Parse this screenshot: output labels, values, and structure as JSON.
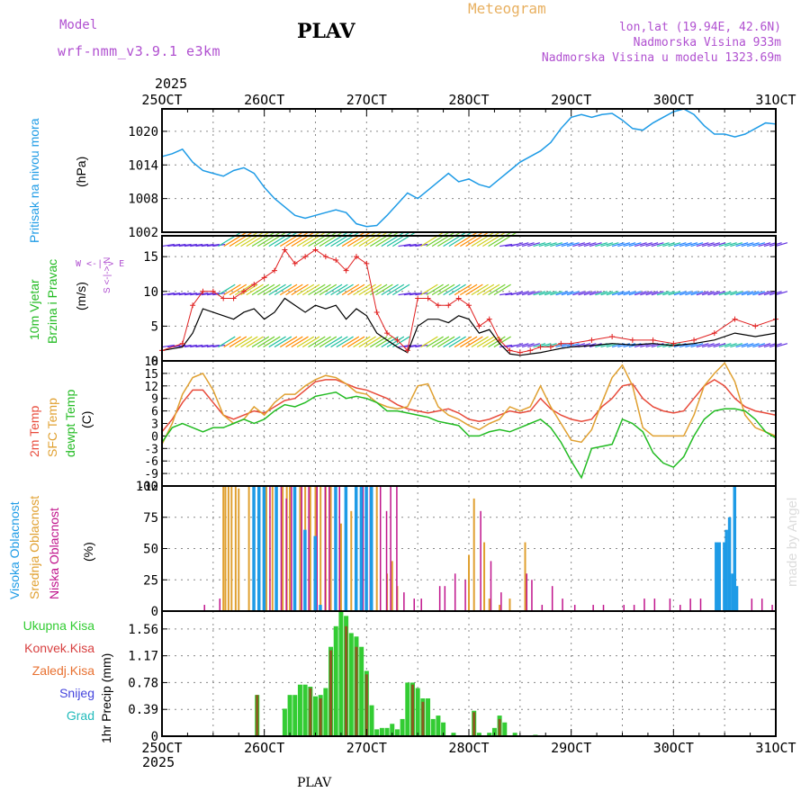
{
  "header": {
    "model_label": "Model",
    "model_name": "wrf-nmm_v3.9.1 e3km",
    "station": "PLAV",
    "meteogram_title": "Meteogram",
    "lonlat": "lon,lat (19.94E, 42.6N)",
    "altitude": "Nadmorska Visina 933m",
    "model_altitude": "Nadmorska Visina u modelu 1323.69m",
    "year": "2025",
    "footer_station": "PLAV",
    "watermark": "made by Angel"
  },
  "colors": {
    "pressure": "#1e9be6",
    "wind_speed": "#000000",
    "wind_gust": "#e02020",
    "temp2m": "#e84a3a",
    "sfc_temp": "#e0a030",
    "dewpoint": "#22bb22",
    "cloud_high": "#1e9be6",
    "cloud_mid": "#e0a030",
    "cloud_low": "#c0148c",
    "precip_total": "#33cc33",
    "precip_conv": "#d84040",
    "label_purple": "#b050d0",
    "title_orange": "#e8b060"
  },
  "time_axis": {
    "top_labels": [
      "25OCT",
      "26OCT",
      "27OCT",
      "28OCT",
      "29OCT",
      "30OCT",
      "31OCT"
    ],
    "bottom_labels": [
      "25OCT",
      "26OCT",
      "27OCT",
      "28OCT",
      "29OCT",
      "30OCT",
      "31OCT"
    ]
  },
  "chart_data": [
    {
      "type": "line",
      "panel": "pressure",
      "title": "Pritisak na nivou mora",
      "ylabel": "(hPa)",
      "yticks": [
        "1002",
        "1008",
        "1014",
        "1020"
      ],
      "ylim": [
        1002,
        1024
      ],
      "x_days": [
        0,
        0.1,
        0.2,
        0.3,
        0.4,
        0.5,
        0.6,
        0.7,
        0.8,
        0.9,
        1.0,
        1.1,
        1.2,
        1.3,
        1.4,
        1.5,
        1.6,
        1.7,
        1.8,
        1.9,
        2.0,
        2.1,
        2.2,
        2.3,
        2.4,
        2.5,
        2.6,
        2.7,
        2.8,
        2.9,
        3.0,
        3.1,
        3.2,
        3.3,
        3.4,
        3.5,
        3.6,
        3.7,
        3.8,
        3.9,
        4.0,
        4.1,
        4.2,
        4.3,
        4.4,
        4.5,
        4.6,
        4.7,
        4.8,
        4.9,
        5.0,
        5.1,
        5.2,
        5.3,
        5.4,
        5.5,
        5.6,
        5.7,
        5.8,
        5.9,
        6.0
      ],
      "values": [
        1015.5,
        1016,
        1016.8,
        1014.5,
        1013,
        1012.5,
        1012,
        1013,
        1013.5,
        1012.5,
        1010,
        1008,
        1006.5,
        1005,
        1004.5,
        1005,
        1005.5,
        1006,
        1005.5,
        1003.5,
        1003,
        1003.2,
        1005,
        1007,
        1009,
        1008,
        1009.5,
        1011,
        1012.5,
        1011,
        1011.5,
        1010.5,
        1010,
        1011.5,
        1013,
        1014.5,
        1015.5,
        1016.5,
        1018,
        1020.5,
        1022.5,
        1023,
        1022.5,
        1023,
        1023.2,
        1022,
        1020.5,
        1020.2,
        1021.5,
        1022.5,
        1023.5,
        1024,
        1023,
        1021,
        1019.5,
        1019.5,
        1019,
        1019.5,
        1020.5,
        1021.5,
        1021.3
      ]
    },
    {
      "type": "line",
      "panel": "wind",
      "title": "10m Vjetar Brzina i Pravac",
      "ylabel": "(m/s)",
      "compass": "W <-|-> E, S <-|-> N",
      "yticks": [
        "0",
        "5",
        "10",
        "15"
      ],
      "ylim": [
        0,
        18
      ],
      "x_days": [
        0,
        0.2,
        0.3,
        0.4,
        0.5,
        0.6,
        0.7,
        0.8,
        0.9,
        1.0,
        1.1,
        1.2,
        1.3,
        1.4,
        1.5,
        1.6,
        1.7,
        1.8,
        1.9,
        2.0,
        2.1,
        2.2,
        2.3,
        2.4,
        2.5,
        2.6,
        2.7,
        2.8,
        2.9,
        3.0,
        3.1,
        3.2,
        3.3,
        3.4,
        3.5,
        3.6,
        3.7,
        3.8,
        3.9,
        4.0,
        4.2,
        4.4,
        4.6,
        4.8,
        5.0,
        5.2,
        5.4,
        5.6,
        5.8,
        6.0
      ],
      "speed": [
        1.5,
        2,
        4,
        7.5,
        7,
        6.5,
        6,
        7,
        7.5,
        6,
        7,
        9,
        8,
        7,
        8,
        7.5,
        8,
        6,
        7.5,
        6.5,
        4,
        3,
        2,
        1.2,
        5,
        6,
        6,
        5.5,
        6.5,
        6,
        4,
        4.5,
        2.5,
        1,
        0.8,
        1,
        1.2,
        1.5,
        1.8,
        2,
        2.2,
        2.5,
        2.3,
        2.5,
        2.2,
        2.5,
        3,
        4,
        3.5,
        4
      ],
      "gust": [
        1.5,
        2.5,
        8,
        10,
        10,
        9,
        9,
        10,
        11,
        12,
        13,
        16,
        14,
        15,
        16,
        15,
        14.5,
        13,
        15,
        14,
        7,
        4,
        3,
        1.5,
        9,
        9,
        8,
        8,
        9,
        8,
        5,
        6,
        3,
        1.5,
        1.2,
        1.5,
        2,
        2,
        2.5,
        2.5,
        3,
        3.5,
        3,
        3,
        2.5,
        3,
        4,
        6,
        5,
        6
      ]
    },
    {
      "type": "line",
      "panel": "temperature",
      "title": "2m Temp / SFC Temp / dewpt Temp",
      "labels": [
        "2m Temp",
        "SFC Temp",
        "dewpt Temp"
      ],
      "ylabel": "(C)",
      "yticks": [
        "-12",
        "-9",
        "-6",
        "-3",
        "0",
        "3",
        "6",
        "9",
        "12",
        "15",
        "18"
      ],
      "ylim": [
        -12,
        18
      ],
      "x_days": [
        0,
        0.1,
        0.2,
        0.3,
        0.4,
        0.5,
        0.6,
        0.7,
        0.8,
        0.9,
        1.0,
        1.1,
        1.2,
        1.3,
        1.4,
        1.5,
        1.6,
        1.7,
        1.8,
        1.9,
        2.0,
        2.1,
        2.2,
        2.3,
        2.4,
        2.5,
        2.6,
        2.7,
        2.8,
        2.9,
        3.0,
        3.1,
        3.2,
        3.3,
        3.4,
        3.5,
        3.6,
        3.7,
        3.8,
        3.9,
        4.0,
        4.1,
        4.2,
        4.3,
        4.4,
        4.5,
        4.6,
        4.7,
        4.8,
        4.9,
        5.0,
        5.1,
        5.2,
        5.3,
        5.4,
        5.5,
        5.6,
        5.7,
        5.8,
        5.9,
        6.0
      ],
      "t2m": [
        1,
        4,
        8,
        11,
        11,
        8,
        5,
        4,
        5,
        6,
        5.5,
        7,
        8.5,
        9,
        11,
        13,
        13.5,
        13.5,
        12.5,
        11.5,
        11,
        10,
        9,
        7.5,
        6.5,
        6,
        5.5,
        6,
        6.5,
        5.5,
        4,
        3.5,
        4,
        5,
        6,
        5.5,
        6,
        9,
        6.5,
        5,
        4,
        3.5,
        4,
        7,
        9,
        12,
        12.5,
        9,
        7,
        6,
        5.5,
        6,
        9,
        12,
        13.5,
        12,
        9,
        7,
        6,
        5.5,
        5
      ],
      "sfc": [
        -2,
        3,
        10,
        14,
        15,
        11,
        5,
        3,
        4,
        7,
        5,
        8,
        10,
        10,
        12,
        13.5,
        14.5,
        14,
        12.5,
        10.5,
        10,
        8,
        7,
        6.5,
        7,
        12,
        12.5,
        7,
        5,
        4,
        2.5,
        1.5,
        3,
        4,
        7,
        6,
        7,
        12,
        7,
        3,
        -1,
        -1.5,
        1.5,
        8,
        14,
        17,
        12,
        2,
        0,
        0,
        0,
        0,
        5,
        12,
        15,
        17.5,
        13,
        5,
        2,
        1,
        0
      ],
      "dew": [
        -1.5,
        2,
        3,
        2,
        1,
        2,
        2,
        3,
        4,
        3,
        4,
        6,
        7.5,
        7,
        8,
        9.5,
        10,
        10.5,
        9,
        9.5,
        9,
        8,
        6,
        6,
        5.5,
        5,
        4.5,
        3.5,
        3,
        2.5,
        0,
        0,
        1,
        1.5,
        1,
        2,
        3,
        4,
        2,
        -1.5,
        -6,
        -10,
        -3,
        -2.5,
        -2,
        4,
        3,
        1,
        -4,
        -6.5,
        -7.5,
        -5,
        0,
        4,
        6,
        6.5,
        6.5,
        6,
        4,
        1,
        -0.5
      ]
    },
    {
      "type": "bar",
      "panel": "clouds",
      "title": "Visoka Oblacnost / Srednja Oblacnost / Niska Oblacnost",
      "labels": [
        "Visoka Oblacnost",
        "Srednja Oblacnost",
        "Niska Oblacnost"
      ],
      "ylabel": "(%)",
      "yticks": [
        "0",
        "25",
        "50",
        "75",
        "100"
      ],
      "ylim": [
        0,
        100
      ],
      "mid_bars": [
        [
          0.6,
          100
        ],
        [
          0.62,
          100
        ],
        [
          0.65,
          100
        ],
        [
          0.68,
          100
        ],
        [
          0.72,
          100
        ],
        [
          0.75,
          98
        ],
        [
          0.85,
          100
        ],
        [
          0.9,
          100
        ],
        [
          0.95,
          100
        ],
        [
          1.02,
          100
        ],
        [
          1.08,
          100
        ],
        [
          1.12,
          100
        ],
        [
          1.18,
          100
        ],
        [
          1.22,
          100
        ],
        [
          1.25,
          100
        ],
        [
          1.3,
          100
        ],
        [
          1.35,
          100
        ],
        [
          1.4,
          100
        ],
        [
          1.45,
          100
        ],
        [
          1.5,
          100
        ],
        [
          1.55,
          100
        ],
        [
          1.6,
          100
        ],
        [
          1.65,
          100
        ],
        [
          1.7,
          100
        ],
        [
          1.75,
          70
        ],
        [
          1.8,
          65
        ],
        [
          1.85,
          80
        ],
        [
          1.9,
          100
        ],
        [
          1.95,
          100
        ],
        [
          2.0,
          100
        ],
        [
          2.05,
          100
        ],
        [
          2.1,
          100
        ],
        [
          2.2,
          30
        ],
        [
          2.25,
          40
        ],
        [
          2.3,
          20
        ],
        [
          3.0,
          45
        ],
        [
          3.05,
          90
        ],
        [
          3.15,
          55
        ],
        [
          3.2,
          10
        ],
        [
          3.3,
          5
        ],
        [
          3.4,
          10
        ],
        [
          3.55,
          55
        ]
      ],
      "low_bars": [
        [
          0.4,
          5
        ],
        [
          0.55,
          10
        ],
        [
          0.98,
          100
        ],
        [
          1.04,
          100
        ],
        [
          1.15,
          100
        ],
        [
          1.2,
          90
        ],
        [
          1.25,
          100
        ],
        [
          1.35,
          100
        ],
        [
          1.42,
          100
        ],
        [
          1.5,
          100
        ],
        [
          1.58,
          100
        ],
        [
          1.62,
          100
        ],
        [
          1.68,
          100
        ],
        [
          1.72,
          100
        ],
        [
          1.78,
          100
        ],
        [
          1.88,
          100
        ],
        [
          1.95,
          100
        ],
        [
          2.02,
          100
        ],
        [
          2.12,
          100
        ],
        [
          2.18,
          80
        ],
        [
          2.22,
          100
        ],
        [
          2.28,
          100
        ],
        [
          2.35,
          15
        ],
        [
          2.45,
          10
        ],
        [
          2.52,
          10
        ],
        [
          2.7,
          20
        ],
        [
          2.75,
          20
        ],
        [
          2.85,
          30
        ],
        [
          2.95,
          25
        ],
        [
          3.1,
          80
        ],
        [
          3.2,
          40
        ],
        [
          3.3,
          15
        ],
        [
          3.55,
          30
        ],
        [
          3.6,
          25
        ],
        [
          3.7,
          5
        ],
        [
          3.8,
          20
        ],
        [
          3.9,
          10
        ],
        [
          4.02,
          5
        ],
        [
          4.2,
          5
        ],
        [
          4.3,
          5
        ],
        [
          4.5,
          5
        ],
        [
          4.6,
          5
        ],
        [
          4.7,
          10
        ],
        [
          4.8,
          10
        ],
        [
          4.95,
          10
        ],
        [
          5.05,
          5
        ],
        [
          5.15,
          10
        ],
        [
          5.25,
          10
        ],
        [
          5.4,
          10
        ],
        [
          5.5,
          5
        ],
        [
          5.75,
          10
        ],
        [
          5.85,
          10
        ],
        [
          5.95,
          5
        ]
      ],
      "high_bars": [
        [
          0.9,
          100
        ],
        [
          0.95,
          100
        ],
        [
          1.0,
          100
        ],
        [
          1.12,
          100
        ],
        [
          1.3,
          100
        ],
        [
          1.4,
          65
        ],
        [
          1.5,
          60
        ],
        [
          1.55,
          5
        ],
        [
          1.7,
          100
        ],
        [
          1.8,
          100
        ],
        [
          1.9,
          100
        ],
        [
          1.95,
          100
        ],
        [
          2.0,
          100
        ],
        [
          2.05,
          100
        ],
        [
          5.42,
          55
        ],
        [
          5.45,
          55
        ],
        [
          5.5,
          55
        ],
        [
          5.52,
          65
        ],
        [
          5.55,
          75
        ],
        [
          5.58,
          30
        ],
        [
          5.6,
          100
        ],
        [
          5.62,
          20
        ]
      ]
    },
    {
      "type": "bar",
      "panel": "precipitation",
      "title": "1hr Precip",
      "labels": [
        "Ukupna Kisa",
        "Konvek.Kisa",
        "Zaledj.Kisa",
        "Snijeg",
        "Grad"
      ],
      "ylabel": "1hr Precip (mm)",
      "yticks": [
        "0",
        "0.39",
        "0.78",
        "1.17",
        "1.56"
      ],
      "ylim": [
        0,
        1.82
      ],
      "total": [
        [
          0.93,
          0.6
        ],
        [
          1.2,
          0.4
        ],
        [
          1.25,
          0.6
        ],
        [
          1.3,
          0.6
        ],
        [
          1.35,
          0.75
        ],
        [
          1.4,
          0.75
        ],
        [
          1.45,
          0.72
        ],
        [
          1.5,
          0.58
        ],
        [
          1.55,
          0.6
        ],
        [
          1.6,
          0.7
        ],
        [
          1.65,
          1.3
        ],
        [
          1.7,
          1.6
        ],
        [
          1.75,
          1.82
        ],
        [
          1.8,
          1.75
        ],
        [
          1.85,
          1.5
        ],
        [
          1.9,
          1.45
        ],
        [
          1.95,
          1.3
        ],
        [
          2.0,
          0.95
        ],
        [
          2.05,
          0.45
        ],
        [
          2.1,
          0.1
        ],
        [
          2.15,
          0.12
        ],
        [
          2.2,
          0.12
        ],
        [
          2.25,
          0.18
        ],
        [
          2.3,
          0.1
        ],
        [
          2.35,
          0.25
        ],
        [
          2.4,
          0.78
        ],
        [
          2.45,
          0.78
        ],
        [
          2.5,
          0.7
        ],
        [
          2.55,
          0.55
        ],
        [
          2.6,
          0.55
        ],
        [
          2.65,
          0.25
        ],
        [
          2.7,
          0.3
        ],
        [
          2.75,
          0.2
        ],
        [
          2.85,
          0.05
        ],
        [
          3.05,
          0.37
        ],
        [
          3.1,
          0.05
        ],
        [
          3.2,
          0.05
        ],
        [
          3.25,
          0.12
        ],
        [
          3.3,
          0.3
        ],
        [
          3.35,
          0.2
        ],
        [
          3.45,
          0.05
        ],
        [
          3.65,
          0.02
        ]
      ],
      "conv": [
        [
          0.93,
          0.6
        ],
        [
          1.45,
          0.7
        ],
        [
          1.55,
          0.55
        ],
        [
          1.65,
          1.25
        ],
        [
          1.8,
          1.6
        ],
        [
          1.9,
          1.3
        ],
        [
          2.0,
          0.9
        ],
        [
          2.45,
          0.75
        ],
        [
          2.55,
          0.5
        ],
        [
          3.05,
          0.35
        ],
        [
          3.3,
          0.25
        ]
      ]
    }
  ]
}
